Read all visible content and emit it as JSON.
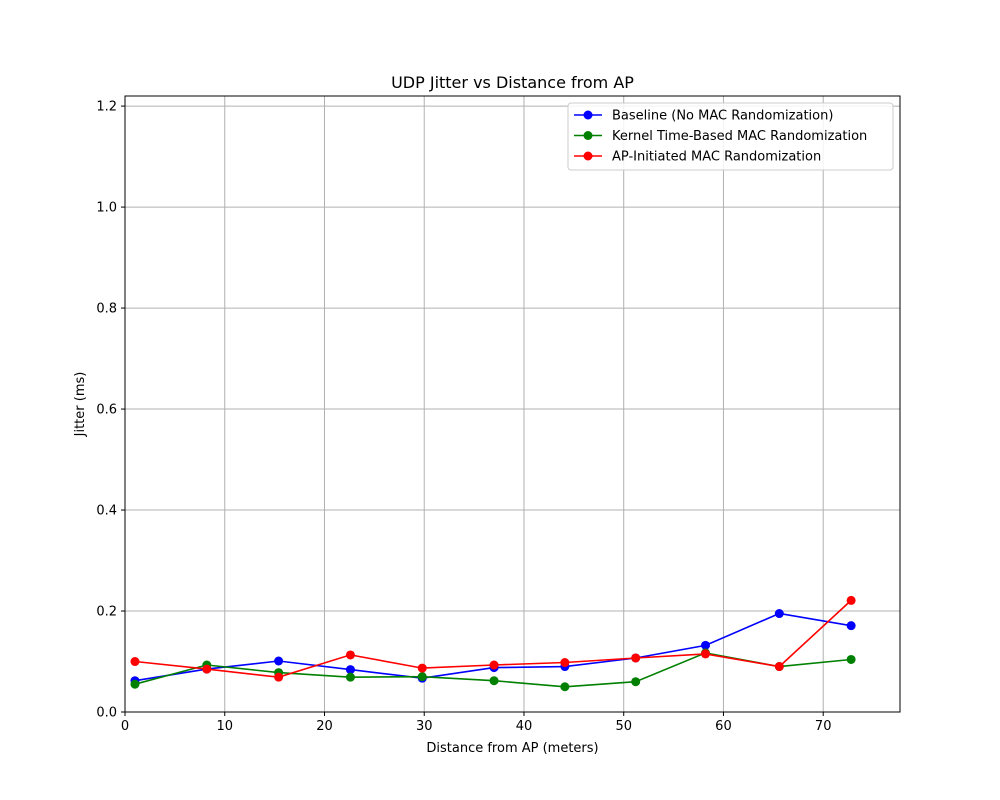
{
  "chart_data": {
    "type": "line",
    "title": "UDP Jitter vs Distance from AP",
    "xlabel": "Distance from AP (meters)",
    "ylabel": "Jitter (ms)",
    "xlim": [
      0,
      77.7
    ],
    "ylim": [
      0,
      1.22
    ],
    "xticks": [
      0,
      10,
      20,
      30,
      40,
      50,
      60,
      70
    ],
    "yticks": [
      0.0,
      0.2,
      0.4,
      0.6,
      0.8,
      1.0,
      1.2
    ],
    "ytick_labels": [
      "0.0",
      "0.2",
      "0.4",
      "0.6",
      "0.8",
      "1.0",
      "1.2"
    ],
    "grid": true,
    "legend_position": "top-right",
    "x": [
      1.0,
      8.2,
      15.4,
      22.6,
      29.8,
      37.0,
      44.1,
      51.2,
      58.2,
      65.6,
      72.8
    ],
    "series": [
      {
        "name": "Baseline (No MAC Randomization)",
        "color": "#0000ff",
        "values": [
          0.062,
          0.085,
          0.101,
          0.084,
          0.067,
          0.088,
          0.09,
          0.107,
          0.132,
          0.195,
          0.171
        ]
      },
      {
        "name": "Kernel Time-Based MAC Randomization",
        "color": "#008000",
        "values": [
          0.055,
          0.093,
          0.078,
          0.069,
          0.07,
          0.062,
          0.05,
          0.06,
          0.117,
          0.09,
          0.104
        ]
      },
      {
        "name": "AP-Initiated MAC Randomization",
        "color": "#ff0000",
        "values": [
          0.1,
          0.085,
          0.069,
          0.113,
          0.087,
          0.093,
          0.098,
          0.107,
          0.115,
          0.09,
          0.221
        ]
      }
    ]
  }
}
